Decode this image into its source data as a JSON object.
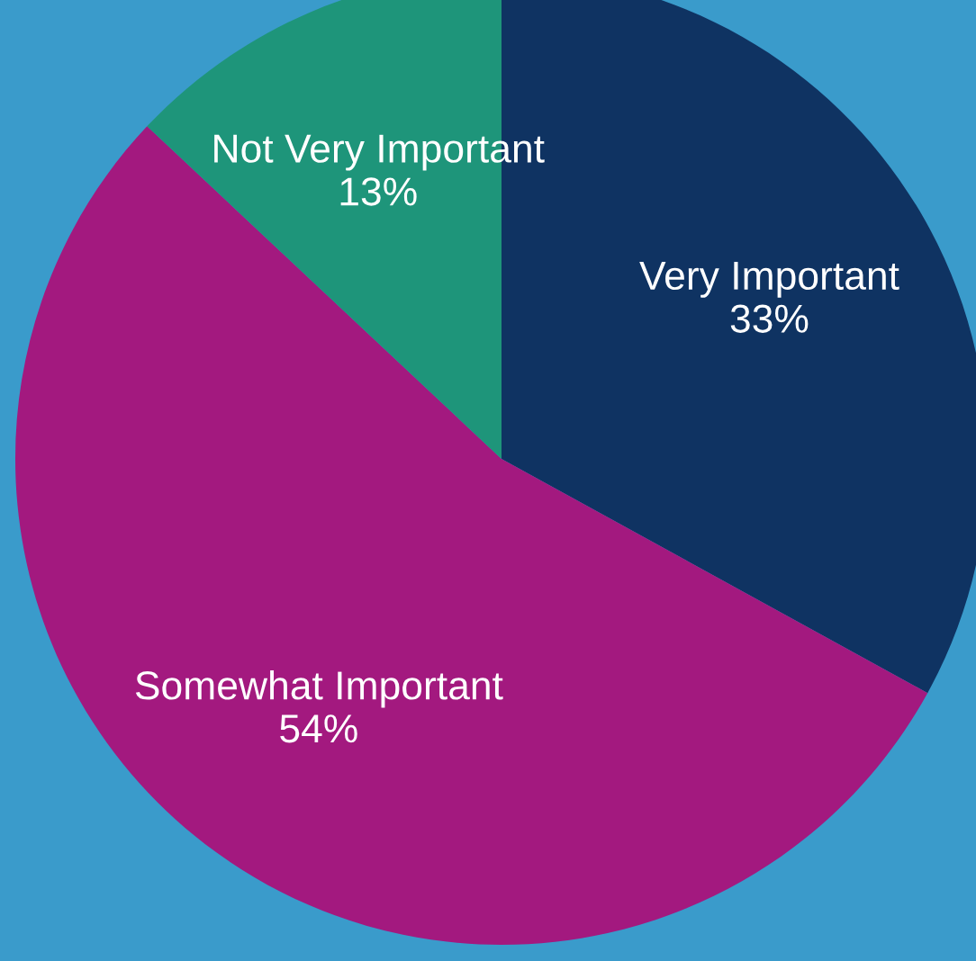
{
  "chart_data": {
    "type": "pie",
    "categories": [
      "Very Important",
      "Somewhat Important",
      "Not Very Important"
    ],
    "values": [
      33,
      54,
      13
    ],
    "value_labels": [
      "33%",
      "54%",
      "13%"
    ],
    "colors": [
      "#0f3362",
      "#a3197f",
      "#1e957a"
    ]
  }
}
